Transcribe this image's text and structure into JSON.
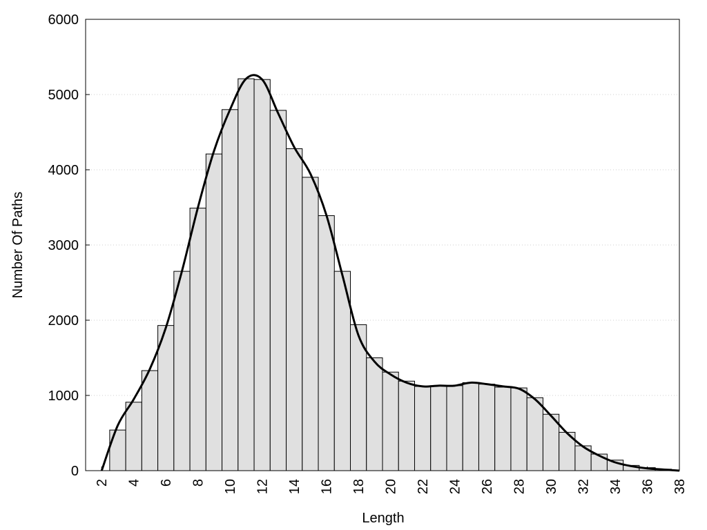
{
  "chart_data": {
    "type": "histogram",
    "xlabel": "Length",
    "ylabel": "Number Of Paths",
    "bins": [
      2.5,
      3.5,
      4.5,
      5.5,
      6.5,
      7.5,
      8.5,
      9.5,
      10.5,
      11.5,
      12.5,
      13.5,
      14.5,
      15.5,
      16.5,
      17.5,
      18.5,
      19.5,
      20.5,
      21.5,
      22.5,
      23.5,
      24.5,
      25.5,
      26.5,
      27.5,
      28.5,
      29.5,
      30.5,
      31.5,
      32.5,
      33.5,
      34.5,
      35.5,
      36.5,
      37.5
    ],
    "counts": [
      540,
      910,
      1330,
      1930,
      2650,
      3490,
      4210,
      4800,
      5210,
      5200,
      4790,
      4280,
      3900,
      3390,
      2650,
      1940,
      1500,
      1310,
      1190,
      1120,
      1130,
      1130,
      1170,
      1150,
      1110,
      1100,
      970,
      750,
      510,
      330,
      220,
      140,
      70,
      40,
      20
    ],
    "color": "#e0e0e0",
    "curve": {
      "color": "#000000",
      "x": [
        2,
        3,
        4,
        5,
        6,
        7,
        8,
        9,
        10,
        11,
        12,
        13,
        14,
        15,
        16,
        17,
        18,
        19,
        20,
        21,
        22,
        23,
        24,
        25,
        26,
        27,
        28,
        29,
        30,
        31,
        32,
        33,
        34,
        35,
        36,
        37,
        38
      ],
      "values": [
        0,
        600,
        950,
        1350,
        1900,
        2650,
        3500,
        4250,
        4800,
        5210,
        5200,
        4750,
        4300,
        3950,
        3400,
        2600,
        1800,
        1450,
        1280,
        1170,
        1120,
        1130,
        1130,
        1170,
        1150,
        1120,
        1090,
        950,
        730,
        500,
        320,
        200,
        110,
        60,
        30,
        15,
        0
      ]
    },
    "xlim": [
      1,
      38
    ],
    "ylim": [
      0,
      6000
    ],
    "xticks": [
      2,
      4,
      6,
      8,
      10,
      12,
      14,
      16,
      18,
      20,
      22,
      24,
      26,
      28,
      30,
      32,
      34,
      36,
      38
    ],
    "yticks": [
      0,
      1000,
      2000,
      3000,
      4000,
      5000,
      6000
    ],
    "grid": true
  }
}
